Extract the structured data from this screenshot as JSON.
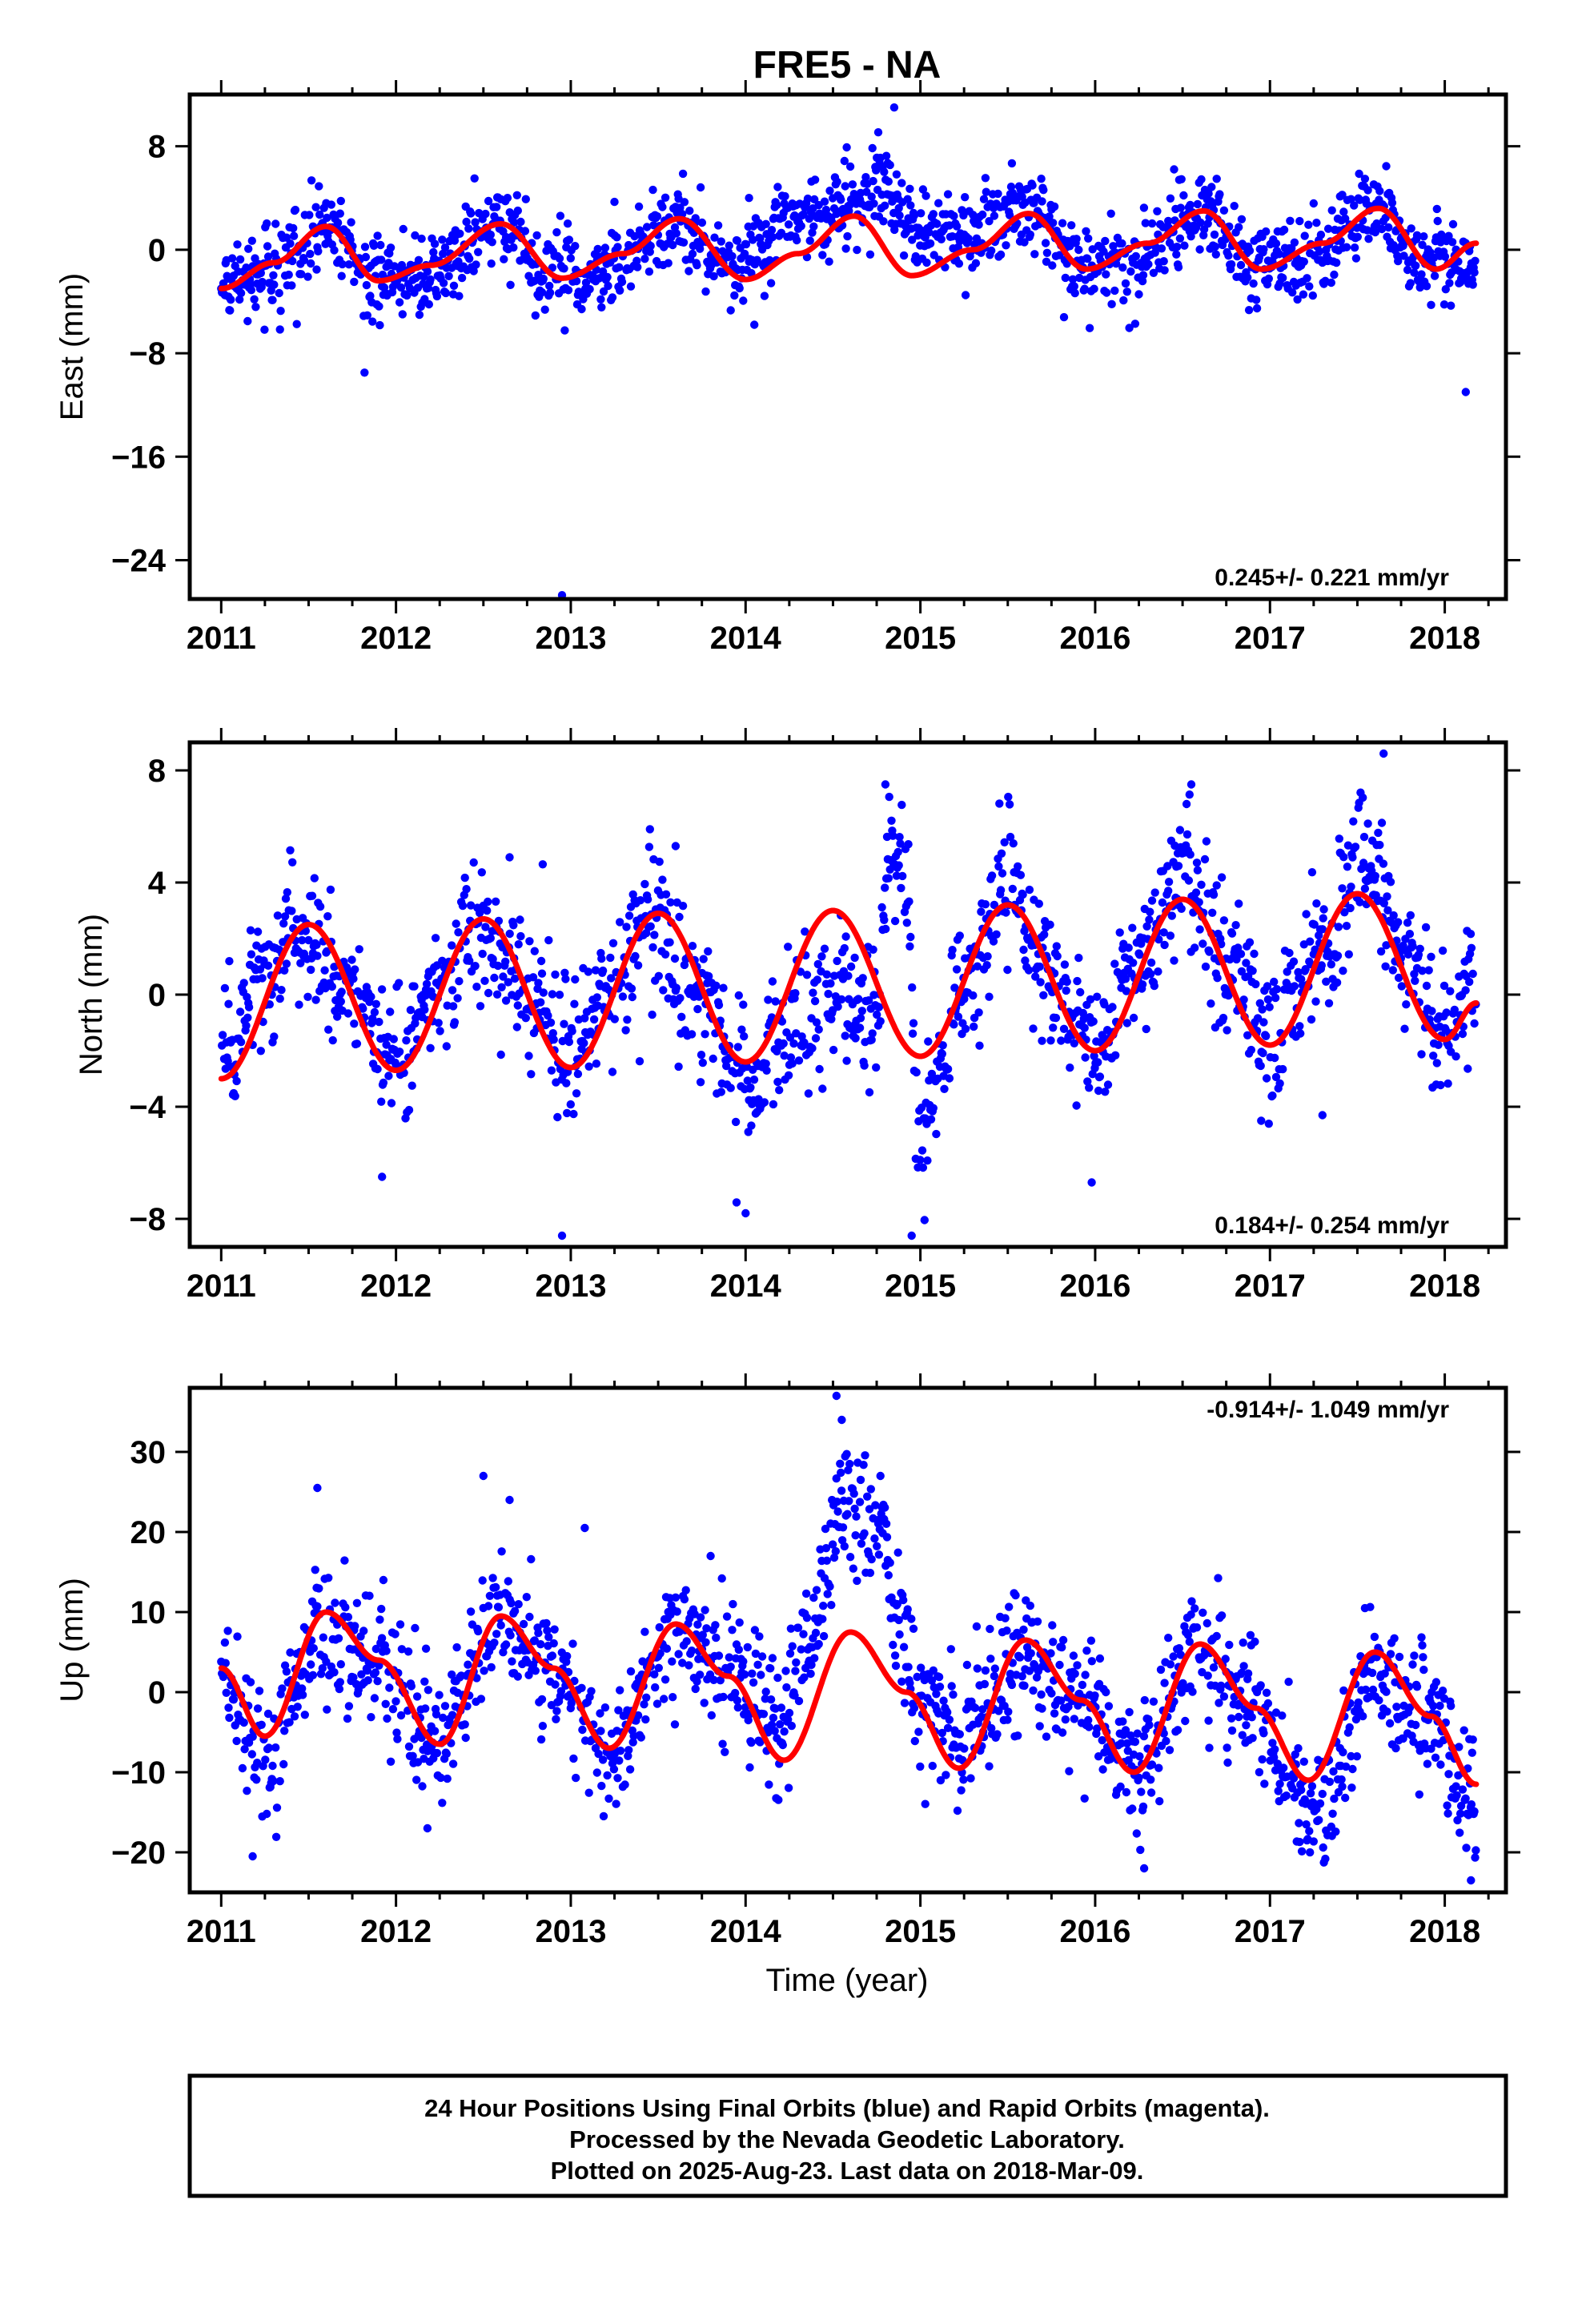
{
  "title": "FRE5 - NA",
  "colors": {
    "final_orbits": "#0000ff",
    "model_fit": "#ff0000",
    "frame": "#000000"
  },
  "footer": {
    "line1": "24 Hour Positions Using Final Orbits (blue) and Rapid Orbits (magenta).",
    "line2": "Processed by the Nevada Geodetic Laboratory.",
    "line3": "Plotted on 2025-Aug-23. Last data on 2018-Mar-09."
  },
  "chart_data": [
    {
      "type": "scatter",
      "ylabel": "East (mm)",
      "xlabel": "",
      "xlim": [
        2010.82,
        2018.35
      ],
      "ylim": [
        -27,
        12
      ],
      "xticks": [
        2011,
        2012,
        2013,
        2014,
        2015,
        2016,
        2017,
        2018
      ],
      "yticks": [
        8,
        0,
        -8,
        -16,
        -24
      ],
      "ytick_labels": [
        "8",
        "0",
        "−8",
        "−16",
        "−24"
      ],
      "rate": "0.245+/- 0.221 mm/yr",
      "rate_position": "bottom-right",
      "series": [
        {
          "role": "daily positions",
          "color": "#0000ff",
          "trend": [
            [
              2011.0,
              -3.0
            ],
            [
              2011.3,
              -1.5
            ],
            [
              2011.6,
              1.8
            ],
            [
              2011.9,
              -2.5
            ],
            [
              2012.2,
              -2.0
            ],
            [
              2012.6,
              2.0
            ],
            [
              2012.9,
              -1.8
            ],
            [
              2013.2,
              -1.8
            ],
            [
              2013.6,
              2.2
            ],
            [
              2013.9,
              -1.5
            ],
            [
              2014.3,
              2.5
            ],
            [
              2014.6,
              3.5
            ],
            [
              2014.8,
              5.0
            ],
            [
              2015.0,
              1.0
            ],
            [
              2015.3,
              1.5
            ],
            [
              2015.6,
              3.5
            ],
            [
              2015.9,
              -1.0
            ],
            [
              2016.2,
              -1.0
            ],
            [
              2016.6,
              3.0
            ],
            [
              2016.9,
              -1.0
            ],
            [
              2017.2,
              -0.5
            ],
            [
              2017.6,
              3.0
            ],
            [
              2017.9,
              -1.0
            ],
            [
              2018.18,
              -0.5
            ]
          ],
          "scatter_sd": 1.6,
          "outliers": [
            [
              2011.82,
              -9.5
            ],
            [
              2012.95,
              -26.7
            ],
            [
              2013.25,
              3.7
            ],
            [
              2014.85,
              11.0
            ],
            [
              2018.12,
              -11.0
            ],
            [
              2014.02,
              4.0
            ],
            [
              2014.05,
              -5.8
            ],
            [
              2012.6,
              3.9
            ]
          ]
        },
        {
          "role": "model fit",
          "color": "#ff0000",
          "curve": [
            [
              2011.0,
              -3.0
            ],
            [
              2011.3,
              -1.0
            ],
            [
              2011.6,
              1.8
            ],
            [
              2011.9,
              -2.4
            ],
            [
              2012.2,
              -1.2
            ],
            [
              2012.6,
              2.0
            ],
            [
              2012.95,
              -2.2
            ],
            [
              2013.3,
              -0.3
            ],
            [
              2013.62,
              2.4
            ],
            [
              2014.0,
              -2.3
            ],
            [
              2014.3,
              -0.3
            ],
            [
              2014.62,
              2.6
            ],
            [
              2014.95,
              -2.0
            ],
            [
              2015.3,
              0.0
            ],
            [
              2015.62,
              2.8
            ],
            [
              2015.95,
              -1.5
            ],
            [
              2016.3,
              0.5
            ],
            [
              2016.62,
              3.0
            ],
            [
              2016.95,
              -1.5
            ],
            [
              2017.3,
              0.5
            ],
            [
              2017.62,
              3.2
            ],
            [
              2017.95,
              -1.5
            ],
            [
              2018.18,
              0.5
            ]
          ]
        }
      ]
    },
    {
      "type": "scatter",
      "ylabel": "North (mm)",
      "xlabel": "",
      "xlim": [
        2010.82,
        2018.35
      ],
      "ylim": [
        -9,
        9
      ],
      "xticks": [
        2011,
        2012,
        2013,
        2014,
        2015,
        2016,
        2017,
        2018
      ],
      "yticks": [
        8,
        4,
        0,
        -4,
        -8
      ],
      "ytick_labels": [
        "8",
        "4",
        "0",
        "−4",
        "−8"
      ],
      "rate": "0.184+/- 0.254 mm/yr",
      "rate_position": "bottom-right",
      "series": [
        {
          "role": "daily positions",
          "color": "#0000ff",
          "trend": [
            [
              2011.0,
              -2.5
            ],
            [
              2011.25,
              0.5
            ],
            [
              2011.45,
              2.8
            ],
            [
              2011.7,
              0.5
            ],
            [
              2012.0,
              -2.5
            ],
            [
              2012.25,
              0.5
            ],
            [
              2012.45,
              2.8
            ],
            [
              2012.7,
              0.5
            ],
            [
              2013.0,
              -2.5
            ],
            [
              2013.25,
              0.5
            ],
            [
              2013.45,
              2.8
            ],
            [
              2013.7,
              0.0
            ],
            [
              2014.0,
              -3.0
            ],
            [
              2014.3,
              -1.0
            ],
            [
              2014.5,
              0.0
            ],
            [
              2014.75,
              -1.0
            ],
            [
              2014.82,
              5.0
            ],
            [
              2014.9,
              4.5
            ],
            [
              2015.0,
              -5.0
            ],
            [
              2015.25,
              0.0
            ],
            [
              2015.48,
              4.0
            ],
            [
              2015.75,
              0.5
            ],
            [
              2016.0,
              -2.0
            ],
            [
              2016.25,
              1.0
            ],
            [
              2016.5,
              4.5
            ],
            [
              2016.75,
              1.0
            ],
            [
              2017.0,
              -1.5
            ],
            [
              2017.3,
              1.5
            ],
            [
              2017.55,
              5.0
            ],
            [
              2017.8,
              1.0
            ],
            [
              2018.0,
              -1.5
            ],
            [
              2018.18,
              1.0
            ]
          ],
          "scatter_sd": 1.2,
          "outliers": [
            [
              2011.92,
              -6.5
            ],
            [
              2012.95,
              -8.6
            ],
            [
              2014.0,
              -7.8
            ],
            [
              2014.95,
              -8.6
            ],
            [
              2015.98,
              -6.7
            ],
            [
              2017.65,
              8.6
            ],
            [
              2014.8,
              7.5
            ],
            [
              2016.55,
              7.5
            ],
            [
              2012.65,
              4.9
            ],
            [
              2013.6,
              5.3
            ],
            [
              2016.95,
              -4.5
            ],
            [
              2017.3,
              -4.3
            ]
          ]
        },
        {
          "role": "model fit",
          "color": "#ff0000",
          "curve": [
            [
              2011.0,
              -3.0
            ],
            [
              2011.5,
              2.5
            ],
            [
              2012.0,
              -2.7
            ],
            [
              2012.5,
              2.7
            ],
            [
              2013.0,
              -2.6
            ],
            [
              2013.5,
              2.9
            ],
            [
              2014.0,
              -2.4
            ],
            [
              2014.5,
              3.0
            ],
            [
              2015.0,
              -2.2
            ],
            [
              2015.5,
              3.2
            ],
            [
              2016.0,
              -2.0
            ],
            [
              2016.5,
              3.4
            ],
            [
              2017.0,
              -1.8
            ],
            [
              2017.5,
              3.6
            ],
            [
              2018.0,
              -1.6
            ],
            [
              2018.18,
              -0.3
            ]
          ]
        }
      ]
    },
    {
      "type": "scatter",
      "ylabel": "Up (mm)",
      "xlabel": "Time (year)",
      "xlim": [
        2010.82,
        2018.35
      ],
      "ylim": [
        -25,
        38
      ],
      "xticks": [
        2011,
        2012,
        2013,
        2014,
        2015,
        2016,
        2017,
        2018
      ],
      "yticks": [
        30,
        20,
        10,
        0,
        -10,
        -20
      ],
      "ytick_labels": [
        "30",
        "20",
        "10",
        "0",
        "−10",
        "−20"
      ],
      "rate": "-0.914+/- 1.049 mm/yr",
      "rate_position": "top-right",
      "series": [
        {
          "role": "daily positions",
          "color": "#0000ff",
          "trend": [
            [
              2011.0,
              2.0
            ],
            [
              2011.25,
              -8.0
            ],
            [
              2011.6,
              8.0
            ],
            [
              2011.9,
              3.0
            ],
            [
              2012.2,
              -7.0
            ],
            [
              2012.6,
              10.0
            ],
            [
              2012.9,
              2.0
            ],
            [
              2013.2,
              -7.0
            ],
            [
              2013.6,
              7.0
            ],
            [
              2013.9,
              3.0
            ],
            [
              2014.2,
              -5.0
            ],
            [
              2014.35,
              5.0
            ],
            [
              2014.55,
              22.0
            ],
            [
              2014.75,
              22.0
            ],
            [
              2014.9,
              8.0
            ],
            [
              2015.0,
              0.0
            ],
            [
              2015.25,
              -6.0
            ],
            [
              2015.6,
              4.0
            ],
            [
              2015.9,
              0.0
            ],
            [
              2016.25,
              -9.0
            ],
            [
              2016.6,
              6.0
            ],
            [
              2016.9,
              -2.0
            ],
            [
              2017.25,
              -15.0
            ],
            [
              2017.6,
              2.0
            ],
            [
              2017.9,
              -3.0
            ],
            [
              2018.18,
              -14.0
            ]
          ],
          "scatter_sd": 4.2,
          "outliers": [
            [
              2014.52,
              37.0
            ],
            [
              2014.55,
              34.0
            ],
            [
              2011.55,
              25.5
            ],
            [
              2012.5,
              27.0
            ],
            [
              2012.65,
              24.0
            ],
            [
              2013.08,
              20.5
            ],
            [
              2011.18,
              -20.5
            ],
            [
              2012.18,
              -17.0
            ],
            [
              2016.28,
              -22.0
            ],
            [
              2018.15,
              -23.5
            ],
            [
              2013.8,
              17.0
            ]
          ]
        },
        {
          "role": "model fit",
          "color": "#ff0000",
          "curve": [
            [
              2011.0,
              3.0
            ],
            [
              2011.25,
              -5.5
            ],
            [
              2011.6,
              10.0
            ],
            [
              2011.9,
              4.0
            ],
            [
              2012.25,
              -6.5
            ],
            [
              2012.6,
              9.5
            ],
            [
              2012.9,
              3.0
            ],
            [
              2013.22,
              -7.0
            ],
            [
              2013.6,
              8.5
            ],
            [
              2013.9,
              2.0
            ],
            [
              2014.22,
              -8.5
            ],
            [
              2014.6,
              7.5
            ],
            [
              2014.92,
              0.0
            ],
            [
              2015.22,
              -9.5
            ],
            [
              2015.6,
              6.5
            ],
            [
              2015.92,
              -1.0
            ],
            [
              2016.22,
              -10.0
            ],
            [
              2016.6,
              6.0
            ],
            [
              2016.92,
              -2.0
            ],
            [
              2017.22,
              -11.0
            ],
            [
              2017.6,
              5.0
            ],
            [
              2017.92,
              -3.0
            ],
            [
              2018.18,
              -11.5
            ]
          ]
        }
      ]
    }
  ]
}
